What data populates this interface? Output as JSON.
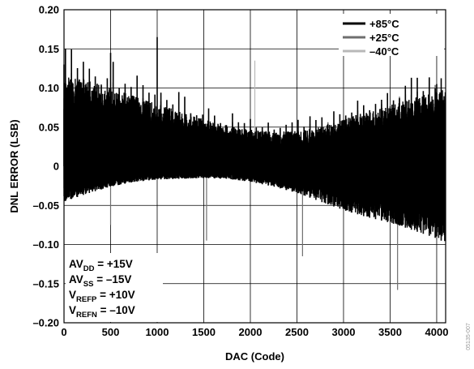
{
  "chart_data": {
    "type": "line",
    "xlabel": "DAC (Code)",
    "ylabel": "DNL ERROR (LSB)",
    "xlim": [
      0,
      4096
    ],
    "ylim": [
      -0.2,
      0.2
    ],
    "x_ticks": [
      0,
      500,
      1000,
      1500,
      2000,
      2500,
      3000,
      3500,
      4000
    ],
    "y_ticks": [
      0.2,
      0.15,
      0.1,
      0.05,
      0,
      -0.05,
      -0.1,
      -0.15,
      -0.2
    ],
    "y_tick_labels": [
      "0.20",
      "0.15",
      "0.10",
      "0.05",
      "0",
      "–0.05",
      "–0.10",
      "–0.15",
      "–0.20"
    ],
    "grid": true,
    "legend_position": "top-right",
    "series": [
      {
        "name": "+85°C",
        "color": "#000000",
        "envelope_x": [
          0,
          250,
          500,
          750,
          1000,
          1250,
          1500,
          1750,
          2000,
          2250,
          2500,
          2750,
          3000,
          3250,
          3500,
          3750,
          4000,
          4095
        ],
        "envelope_upper": [
          0.115,
          0.11,
          0.1,
          0.09,
          0.08,
          0.07,
          0.06,
          0.052,
          0.047,
          0.044,
          0.045,
          0.05,
          0.06,
          0.07,
          0.078,
          0.088,
          0.097,
          0.1
        ],
        "envelope_lower": [
          -0.045,
          -0.035,
          -0.026,
          -0.02,
          -0.017,
          -0.016,
          -0.015,
          -0.016,
          -0.02,
          -0.026,
          -0.034,
          -0.045,
          -0.056,
          -0.065,
          -0.072,
          -0.082,
          -0.092,
          -0.098
        ],
        "peaks": [
          [
            1000,
            0.165
          ],
          [
            500,
            0.145
          ],
          [
            0,
            0.13
          ],
          [
            4000,
            0.105
          ]
        ],
        "spikes": []
      },
      {
        "name": "+25°C",
        "color": "#6e6e6e",
        "envelope_x": [
          0,
          250,
          500,
          750,
          1000,
          1250,
          1500,
          1750,
          2000,
          2250,
          2500,
          2750,
          3000,
          3250,
          3500,
          3750,
          4000,
          4095
        ],
        "envelope_upper": [
          0.095,
          0.09,
          0.082,
          0.072,
          0.064,
          0.056,
          0.049,
          0.043,
          0.04,
          0.038,
          0.038,
          0.042,
          0.05,
          0.058,
          0.066,
          0.075,
          0.083,
          0.086
        ],
        "envelope_lower": [
          -0.035,
          -0.028,
          -0.021,
          -0.016,
          -0.013,
          -0.012,
          -0.011,
          -0.012,
          -0.015,
          -0.02,
          -0.026,
          -0.034,
          -0.043,
          -0.051,
          -0.058,
          -0.066,
          -0.073,
          -0.076
        ],
        "peaks": [],
        "spikes": [
          [
            500,
            -0.075
          ],
          [
            1530,
            -0.095
          ],
          [
            2560,
            -0.115
          ],
          [
            3580,
            -0.158
          ]
        ]
      },
      {
        "name": "–40°C",
        "color": "#b8b8b8",
        "envelope_x": [
          0,
          250,
          500,
          750,
          1000,
          1250,
          1500,
          1750,
          2000,
          2250,
          2500,
          2750,
          3000,
          3250,
          3500,
          3750,
          4000,
          4095
        ],
        "envelope_upper": [
          0.07,
          0.066,
          0.06,
          0.054,
          0.048,
          0.043,
          0.038,
          0.034,
          0.032,
          0.031,
          0.032,
          0.035,
          0.04,
          0.046,
          0.052,
          0.058,
          0.064,
          0.066
        ],
        "envelope_lower": [
          -0.024,
          -0.019,
          -0.014,
          -0.01,
          -0.008,
          -0.007,
          -0.007,
          -0.008,
          -0.01,
          -0.014,
          -0.019,
          -0.025,
          -0.032,
          -0.038,
          -0.044,
          -0.05,
          -0.056,
          -0.058
        ],
        "peaks": [],
        "spikes": [
          [
            2048,
            0.135
          ],
          [
            2048,
            -0.008
          ]
        ]
      }
    ]
  },
  "conditions": [
    {
      "main": "AV",
      "sub": "DD",
      "rest": " = +15V"
    },
    {
      "main": "AV",
      "sub": "SS",
      "rest": " = –15V"
    },
    {
      "main": "V",
      "sub": "REFP",
      "rest": " = +10V"
    },
    {
      "main": "V",
      "sub": "REFN",
      "rest": " = –10V"
    }
  ],
  "side_id": "05135-007"
}
